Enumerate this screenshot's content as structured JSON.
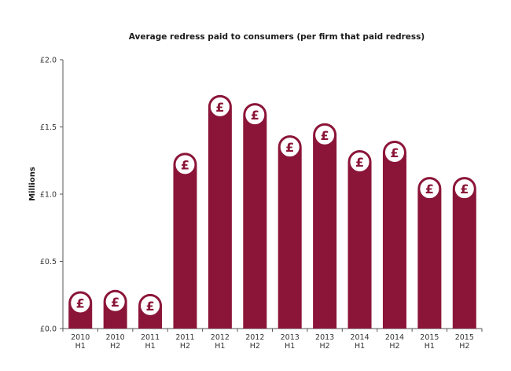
{
  "chart_data": {
    "type": "bar",
    "title": "Average redress paid to consumers (per firm that paid redress)",
    "ylabel": "Millions",
    "xlabel": "",
    "ylim": [
      0,
      2.0
    ],
    "yticks": [
      0,
      0.5,
      1.0,
      1.5,
      2.0
    ],
    "ytick_labels": [
      "£0.0",
      "£0.5",
      "£1.0",
      "£1.5",
      "£2.0"
    ],
    "categories": [
      [
        "2010",
        "H1"
      ],
      [
        "2010",
        "H2"
      ],
      [
        "2011",
        "H1"
      ],
      [
        "2011",
        "H2"
      ],
      [
        "2012",
        "H1"
      ],
      [
        "2012",
        "H2"
      ],
      [
        "2013",
        "H1"
      ],
      [
        "2013",
        "H2"
      ],
      [
        "2014",
        "H1"
      ],
      [
        "2014",
        "H2"
      ],
      [
        "2015",
        "H1"
      ],
      [
        "2015",
        "H2"
      ]
    ],
    "values": [
      0.19,
      0.2,
      0.17,
      1.22,
      1.65,
      1.59,
      1.35,
      1.44,
      1.24,
      1.31,
      1.04,
      1.04
    ],
    "marker_symbol": "£",
    "bar_color": "#8b1538",
    "grid": false,
    "legend": "none"
  }
}
